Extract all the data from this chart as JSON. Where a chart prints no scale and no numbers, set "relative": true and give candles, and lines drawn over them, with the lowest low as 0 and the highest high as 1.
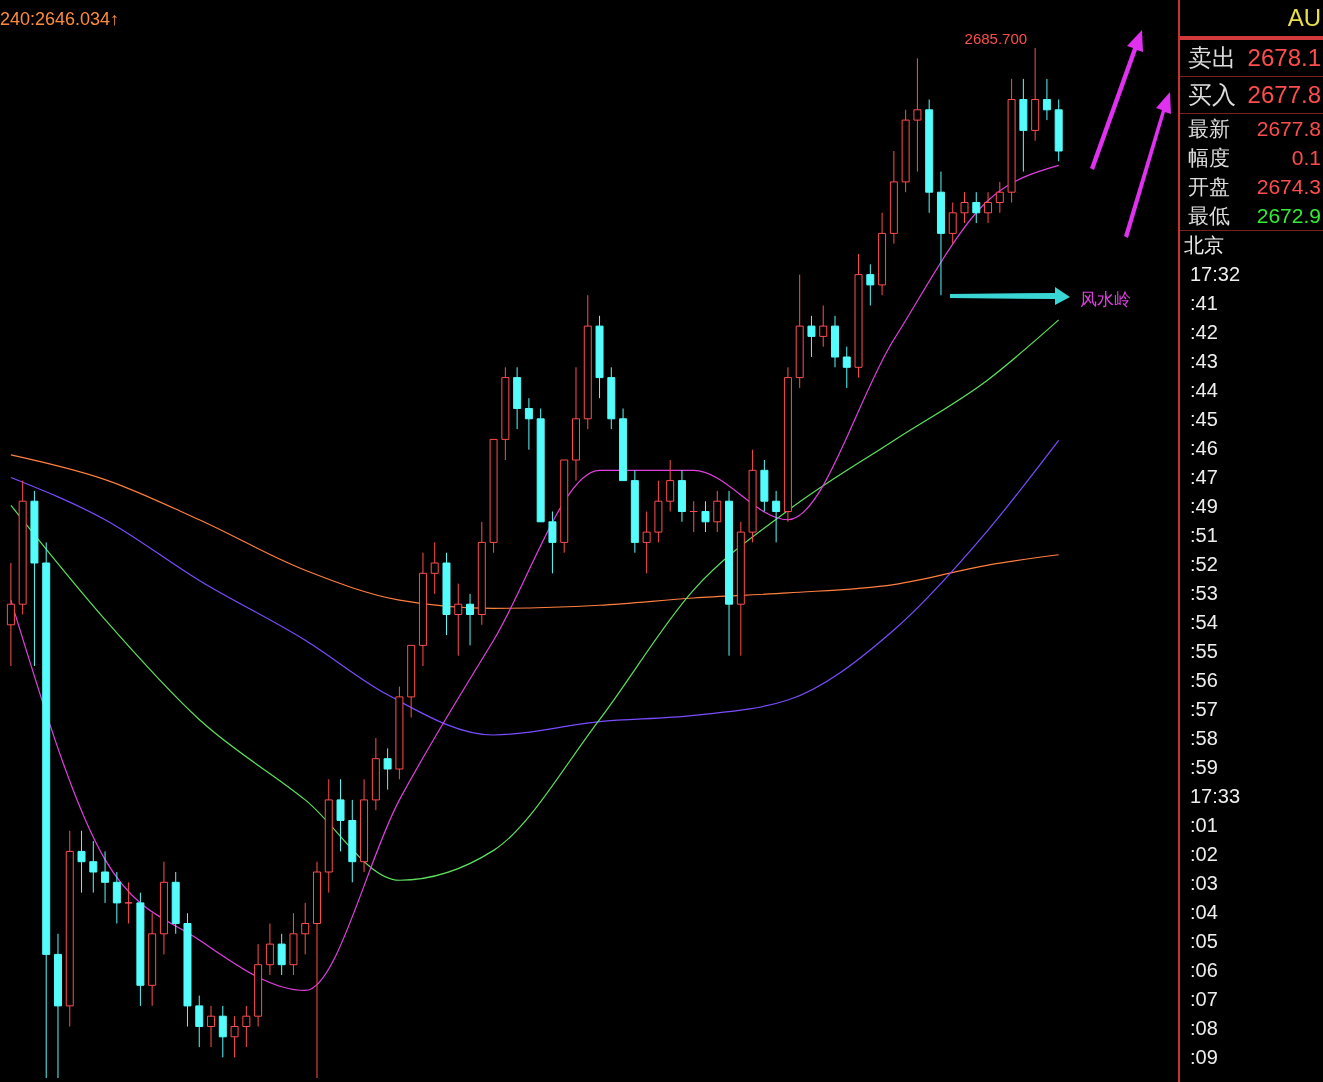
{
  "chart_data": {
    "type": "candlestick",
    "relative": true,
    "categories": [
      null,
      null,
      null,
      null,
      null,
      null,
      null,
      null,
      null,
      null,
      null,
      null,
      null,
      null,
      null,
      null,
      null,
      null,
      null,
      null,
      null,
      null,
      null,
      null,
      null,
      null,
      null,
      null,
      null,
      null,
      null,
      null,
      null,
      null,
      null,
      null,
      null,
      null,
      null,
      null,
      null,
      null,
      null,
      null,
      null,
      null,
      null,
      null,
      null,
      null,
      null,
      null,
      null,
      null,
      null,
      null,
      null,
      null,
      null,
      null,
      null,
      null,
      null,
      null,
      null,
      null,
      null,
      null,
      null,
      null,
      null,
      null,
      null,
      null,
      null,
      null,
      null,
      null,
      null,
      null,
      null,
      null,
      null,
      null,
      null,
      null,
      null,
      null,
      null,
      null
    ],
    "ohlc": [
      [
        0.44,
        0.5,
        0.4,
        0.46
      ],
      [
        0.46,
        0.58,
        0.45,
        0.56
      ],
      [
        0.56,
        0.57,
        0.4,
        0.5
      ],
      [
        0.5,
        0.52,
        0.0,
        0.12
      ],
      [
        0.12,
        0.14,
        0.0,
        0.07
      ],
      [
        0.07,
        0.24,
        0.05,
        0.22
      ],
      [
        0.22,
        0.24,
        0.18,
        0.21
      ],
      [
        0.21,
        0.23,
        0.18,
        0.2
      ],
      [
        0.2,
        0.22,
        0.17,
        0.19
      ],
      [
        0.19,
        0.2,
        0.15,
        0.17
      ],
      [
        0.17,
        0.19,
        0.15,
        0.17
      ],
      [
        0.17,
        0.18,
        0.07,
        0.09
      ],
      [
        0.09,
        0.16,
        0.07,
        0.14
      ],
      [
        0.14,
        0.21,
        0.12,
        0.19
      ],
      [
        0.19,
        0.2,
        0.14,
        0.15
      ],
      [
        0.15,
        0.16,
        0.05,
        0.07
      ],
      [
        0.07,
        0.08,
        0.03,
        0.05
      ],
      [
        0.05,
        0.07,
        0.03,
        0.06
      ],
      [
        0.06,
        0.07,
        0.02,
        0.04
      ],
      [
        0.04,
        0.06,
        0.02,
        0.05
      ],
      [
        0.05,
        0.07,
        0.03,
        0.06
      ],
      [
        0.06,
        0.13,
        0.05,
        0.11
      ],
      [
        0.11,
        0.15,
        0.1,
        0.13
      ],
      [
        0.13,
        0.14,
        0.1,
        0.11
      ],
      [
        0.11,
        0.16,
        0.1,
        0.14
      ],
      [
        0.14,
        0.17,
        0.12,
        0.15
      ],
      [
        0.15,
        0.21,
        0.0,
        0.2
      ],
      [
        0.2,
        0.29,
        0.18,
        0.27
      ],
      [
        0.27,
        0.29,
        0.22,
        0.25
      ],
      [
        0.25,
        0.27,
        0.19,
        0.21
      ],
      [
        0.21,
        0.29,
        0.2,
        0.27
      ],
      [
        0.27,
        0.33,
        0.26,
        0.31
      ],
      [
        0.31,
        0.32,
        0.28,
        0.3
      ],
      [
        0.3,
        0.38,
        0.29,
        0.37
      ],
      [
        0.37,
        0.42,
        0.35,
        0.42
      ],
      [
        0.42,
        0.51,
        0.4,
        0.49
      ],
      [
        0.49,
        0.52,
        0.47,
        0.5
      ],
      [
        0.5,
        0.51,
        0.43,
        0.45
      ],
      [
        0.45,
        0.48,
        0.41,
        0.46
      ],
      [
        0.46,
        0.47,
        0.42,
        0.45
      ],
      [
        0.45,
        0.54,
        0.44,
        0.52
      ],
      [
        0.52,
        0.62,
        0.51,
        0.62
      ],
      [
        0.62,
        0.69,
        0.6,
        0.68
      ],
      [
        0.68,
        0.69,
        0.63,
        0.65
      ],
      [
        0.65,
        0.66,
        0.61,
        0.64
      ],
      [
        0.64,
        0.65,
        0.54,
        0.54
      ],
      [
        0.54,
        0.55,
        0.49,
        0.52
      ],
      [
        0.52,
        0.6,
        0.51,
        0.6
      ],
      [
        0.6,
        0.69,
        0.58,
        0.64
      ],
      [
        0.64,
        0.76,
        0.63,
        0.73
      ],
      [
        0.73,
        0.74,
        0.66,
        0.68
      ],
      [
        0.68,
        0.69,
        0.63,
        0.64
      ],
      [
        0.64,
        0.65,
        0.58,
        0.58
      ],
      [
        0.58,
        0.59,
        0.51,
        0.52
      ],
      [
        0.52,
        0.55,
        0.49,
        0.53
      ],
      [
        0.53,
        0.58,
        0.52,
        0.56
      ],
      [
        0.56,
        0.6,
        0.55,
        0.58
      ],
      [
        0.58,
        0.59,
        0.54,
        0.55
      ],
      [
        0.55,
        0.56,
        0.53,
        0.55
      ],
      [
        0.55,
        0.56,
        0.53,
        0.54
      ],
      [
        0.54,
        0.57,
        0.53,
        0.56
      ],
      [
        0.56,
        0.57,
        0.41,
        0.46
      ],
      [
        0.46,
        0.54,
        0.41,
        0.53
      ],
      [
        0.53,
        0.61,
        0.52,
        0.59
      ],
      [
        0.59,
        0.6,
        0.55,
        0.56
      ],
      [
        0.56,
        0.57,
        0.52,
        0.55
      ],
      [
        0.55,
        0.69,
        0.54,
        0.68
      ],
      [
        0.68,
        0.78,
        0.67,
        0.73
      ],
      [
        0.73,
        0.74,
        0.7,
        0.72
      ],
      [
        0.72,
        0.75,
        0.71,
        0.73
      ],
      [
        0.73,
        0.74,
        0.69,
        0.7
      ],
      [
        0.7,
        0.71,
        0.67,
        0.69
      ],
      [
        0.69,
        0.8,
        0.68,
        0.78
      ],
      [
        0.78,
        0.79,
        0.75,
        0.77
      ],
      [
        0.77,
        0.84,
        0.76,
        0.82
      ],
      [
        0.82,
        0.9,
        0.81,
        0.87
      ],
      [
        0.87,
        0.94,
        0.86,
        0.93
      ],
      [
        0.93,
        0.99,
        0.88,
        0.94
      ],
      [
        0.94,
        0.95,
        0.84,
        0.86
      ],
      [
        0.86,
        0.88,
        0.76,
        0.82
      ],
      [
        0.82,
        0.85,
        0.81,
        0.84
      ],
      [
        0.84,
        0.86,
        0.83,
        0.85
      ],
      [
        0.85,
        0.86,
        0.83,
        0.84
      ],
      [
        0.84,
        0.86,
        0.83,
        0.85
      ],
      [
        0.85,
        0.87,
        0.84,
        0.86
      ],
      [
        0.86,
        0.97,
        0.85,
        0.95
      ],
      [
        0.95,
        0.97,
        0.88,
        0.92
      ],
      [
        0.92,
        1.0,
        0.91,
        0.95
      ],
      [
        0.95,
        0.97,
        0.93,
        0.94
      ],
      [
        0.94,
        0.95,
        0.89,
        0.9
      ]
    ],
    "colors": [
      "#ff4d4d",
      "#ff4d4d",
      "#54fcfc",
      "#54fcfc",
      "#54fcfc",
      "#ff4d4d",
      "#54fcfc",
      "#54fcfc",
      "#54fcfc",
      "#54fcfc",
      "#ff4d4d",
      "#54fcfc",
      "#ff4d4d",
      "#ff4d4d",
      "#54fcfc",
      "#54fcfc",
      "#54fcfc",
      "#ff4d4d",
      "#54fcfc",
      "#ff4d4d",
      "#ff4d4d",
      "#ff4d4d",
      "#ff4d4d",
      "#54fcfc",
      "#ff4d4d",
      "#ff4d4d",
      "#ff4d4d",
      "#ff4d4d",
      "#54fcfc",
      "#54fcfc",
      "#ff4d4d",
      "#ff4d4d",
      "#54fcfc",
      "#ff4d4d",
      "#ff4d4d",
      "#ff4d4d",
      "#ff4d4d",
      "#54fcfc",
      "#ff4d4d",
      "#54fcfc",
      "#ff4d4d",
      "#ff4d4d",
      "#ff4d4d",
      "#54fcfc",
      "#54fcfc",
      "#54fcfc",
      "#54fcfc",
      "#ff4d4d",
      "#ff4d4d",
      "#ff4d4d",
      "#54fcfc",
      "#54fcfc",
      "#54fcfc",
      "#54fcfc",
      "#ff4d4d",
      "#ff4d4d",
      "#ff4d4d",
      "#54fcfc",
      "#ff4d4d",
      "#54fcfc",
      "#ff4d4d",
      "#54fcfc",
      "#ff4d4d",
      "#ff4d4d",
      "#54fcfc",
      "#54fcfc",
      "#ff4d4d",
      "#ff4d4d",
      "#54fcfc",
      "#ff4d4d",
      "#54fcfc",
      "#54fcfc",
      "#ff4d4d",
      "#54fcfc",
      "#ff4d4d",
      "#ff4d4d",
      "#ff4d4d",
      "#ff4d4d",
      "#54fcfc",
      "#54fcfc",
      "#ff4d4d",
      "#ff4d4d",
      "#54fcfc",
      "#ff4d4d",
      "#ff4d4d",
      "#ff4d4d",
      "#54fcfc",
      "#ff4d4d",
      "#54fcfc",
      "#54fcfc"
    ],
    "series": [
      {
        "type": "line",
        "color": "#ff7f3f",
        "values": [
          0.605,
          null,
          null,
          null,
          null,
          null,
          null,
          null,
          0.581,
          null,
          null,
          null,
          null,
          null,
          null,
          null,
          0.542,
          null,
          null,
          null,
          null,
          null,
          null,
          null,
          null,
          0.493,
          null,
          null,
          null,
          null,
          null,
          null,
          null,
          0.464,
          null,
          null,
          null,
          null,
          null,
          null,
          null,
          0.456,
          null,
          null,
          null,
          null,
          null,
          null,
          null,
          null,
          0.459,
          null,
          null,
          null,
          null,
          null,
          null,
          null,
          0.466,
          null,
          null,
          null,
          null,
          null,
          null,
          null,
          0.471,
          null,
          null,
          null,
          null,
          null,
          null,
          null,
          null,
          0.479,
          null,
          null,
          null,
          null,
          null,
          null,
          null,
          0.498,
          null,
          null,
          null,
          null,
          null,
          0.508
        ]
      },
      {
        "type": "line",
        "color": "#7a4cff",
        "values": [
          0.583,
          null,
          null,
          null,
          null,
          null,
          null,
          null,
          0.542,
          null,
          null,
          null,
          null,
          null,
          null,
          null,
          0.483,
          null,
          null,
          null,
          null,
          null,
          null,
          null,
          null,
          0.425,
          null,
          null,
          null,
          null,
          null,
          null,
          0.372,
          null,
          null,
          null,
          null,
          null,
          null,
          null,
          null,
          0.333,
          null,
          null,
          null,
          null,
          null,
          null,
          null,
          null,
          0.346,
          null,
          null,
          null,
          null,
          null,
          null,
          null,
          0.352,
          null,
          null,
          null,
          null,
          null,
          null,
          null,
          0.367,
          null,
          null,
          null,
          null,
          null,
          null,
          null,
          null,
          0.435,
          null,
          null,
          null,
          null,
          null,
          null,
          null,
          0.532,
          null,
          null,
          null,
          null,
          null,
          0.619
        ]
      },
      {
        "type": "line",
        "color": "#5ee05e",
        "values": [
          0.556,
          null,
          null,
          null,
          null,
          null,
          null,
          null,
          0.445,
          null,
          null,
          null,
          null,
          null,
          null,
          null,
          0.348,
          null,
          null,
          null,
          null,
          null,
          null,
          null,
          null,
          0.27,
          null,
          null,
          null,
          null,
          null,
          null,
          null,
          0.192,
          null,
          null,
          null,
          null,
          null,
          null,
          null,
          0.221,
          null,
          null,
          null,
          null,
          null,
          null,
          null,
          null,
          0.348,
          null,
          null,
          null,
          null,
          null,
          null,
          null,
          0.474,
          null,
          null,
          null,
          null,
          null,
          null,
          null,
          0.551,
          null,
          null,
          null,
          null,
          null,
          null,
          null,
          null,
          0.619,
          null,
          null,
          null,
          null,
          null,
          null,
          null,
          0.678,
          null,
          null,
          null,
          null,
          null,
          0.736
        ]
      },
      {
        "type": "line",
        "color": "#e040e0",
        "values": [
          0.464,
          null,
          null,
          null,
          null,
          null,
          null,
          null,
          0.212,
          null,
          null,
          null,
          null,
          null,
          null,
          null,
          0.134,
          null,
          null,
          null,
          null,
          null,
          null,
          null,
          null,
          0.085,
          null,
          null,
          null,
          null,
          null,
          null,
          null,
          0.27,
          null,
          null,
          null,
          null,
          null,
          null,
          null,
          0.425,
          null,
          null,
          null,
          null,
          null,
          null,
          null,
          null,
          0.59,
          null,
          null,
          null,
          null,
          null,
          null,
          null,
          0.59,
          null,
          null,
          null,
          null,
          null,
          null,
          null,
          0.542,
          null,
          null,
          null,
          null,
          null,
          null,
          null,
          null,
          0.717,
          null,
          null,
          null,
          null,
          null,
          null,
          null,
          0.852,
          null,
          null,
          null,
          null,
          null,
          0.886
        ]
      }
    ],
    "annotations": [
      "240:2646.034↑",
      "2685.700",
      "风水岭",
      "AU",
      "卖出",
      "2678.1",
      "买入",
      "2677.8",
      "最新",
      "2677.8",
      "幅度",
      "0.1",
      "开盘",
      "2674.3",
      "最低",
      "2672.9",
      "北京",
      "17:32",
      ":41",
      ":42",
      ":43",
      ":44",
      ":45",
      ":46",
      ":47",
      ":49",
      ":51",
      ":52",
      ":53",
      ":54",
      ":55",
      ":56",
      ":57",
      ":58",
      ":59",
      "17:33",
      ":01",
      ":02",
      ":03",
      ":04",
      ":05",
      ":06",
      ":07",
      ":08",
      ":09"
    ]
  }
}
